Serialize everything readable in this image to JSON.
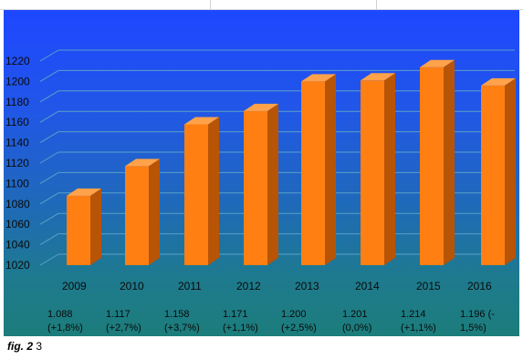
{
  "caption": {
    "fig_label": "fig. 2",
    "number": "3"
  },
  "colors": {
    "bar_front": "#ff7f12",
    "bar_side": "#b85406",
    "bar_top": "#ffa24a",
    "grid": "#5aa0c8",
    "background_top": "#1e47ff",
    "background_bottom": "#1c7d7b"
  },
  "chart_data": {
    "type": "bar",
    "title": "",
    "xlabel": "",
    "ylabel": "",
    "categories": [
      "2009",
      "2010",
      "2011",
      "2012",
      "2013",
      "2014",
      "2015",
      "2016"
    ],
    "values": [
      1088,
      1117,
      1158,
      1171,
      1200,
      1201,
      1214,
      1196
    ],
    "ylim": [
      1020,
      1230
    ],
    "yticks": [
      "1020",
      "1040",
      "1060",
      "1080",
      "1100",
      "1120",
      "1140",
      "1160",
      "1180",
      "1200",
      "1220"
    ],
    "grid": true,
    "style": "3d",
    "data_labels": [
      [
        "1.088",
        "(+1,8%)"
      ],
      [
        "1.117",
        "(+2,7%)"
      ],
      [
        "1.158",
        "(+3,7%)"
      ],
      [
        "1.171",
        "(+1,1%)"
      ],
      [
        "1.200",
        "(+2,5%)"
      ],
      [
        "1.201",
        "(0,0%)"
      ],
      [
        "1.214",
        "(+1,1%)"
      ],
      [
        "1.196 (-",
        "1,5%)"
      ]
    ]
  }
}
